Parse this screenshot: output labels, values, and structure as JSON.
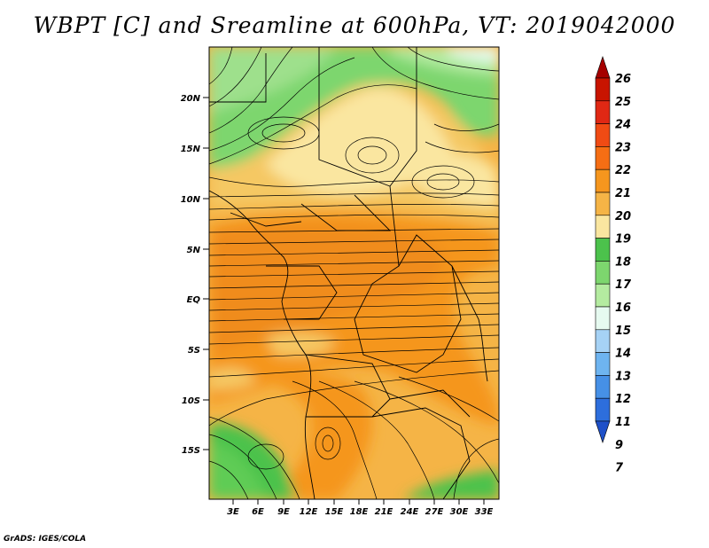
{
  "title": "WBPT [C] and Sreamline at 600hPa, VT: 2019042000",
  "credit": "GrADS: IGES/COLA",
  "map": {
    "lat_ticks": [
      "20N",
      "15N",
      "10N",
      "5N",
      "EQ",
      "5S",
      "10S",
      "15S"
    ],
    "lon_ticks": [
      "3E",
      "6E",
      "9E",
      "12E",
      "15E",
      "18E",
      "21E",
      "24E",
      "27E",
      "30E",
      "33E"
    ]
  },
  "colorbar": {
    "labels": [
      "26",
      "25",
      "24",
      "23",
      "22",
      "21",
      "20",
      "19",
      "18",
      "17",
      "16",
      "15",
      "14",
      "13",
      "12",
      "11",
      "9",
      "7"
    ],
    "colors": [
      "#a50000",
      "#c81400",
      "#e02814",
      "#f04b14",
      "#f56e14",
      "#f5961e",
      "#f5b446",
      "#fae6a0",
      "#4cc24c",
      "#7dd66e",
      "#b4eba0",
      "#e6faf0",
      "#a6d2f5",
      "#6eb4f0",
      "#4690e6",
      "#2d6edc",
      "#1e50c8"
    ]
  }
}
